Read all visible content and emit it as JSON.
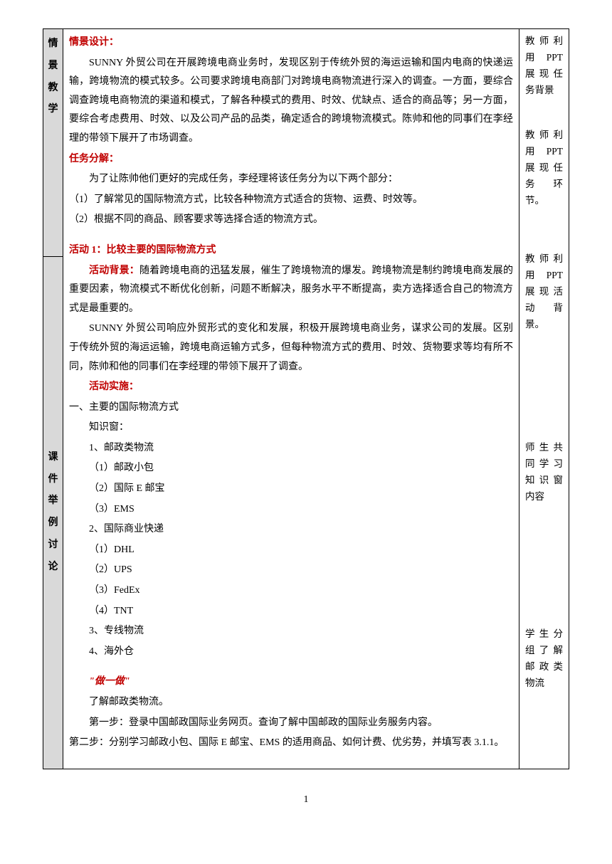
{
  "leftLabels": {
    "row1": "情景教学",
    "row2": "课件举例讨论"
  },
  "main": {
    "scenario": {
      "heading": "情景设计：",
      "p1": "SUNNY 外贸公司在开展跨境电商业务时，发现区别于传统外贸的海运运输和国内电商的快递运输，跨境物流的模式较多。公司要求跨境电商部门对跨境电商物流进行深入的调查。一方面，要综合调查跨境电商物流的渠道和模式，了解各种模式的费用、时效、优缺点、适合的商品等；另一方面，要综合考虑费用、时效、以及公司产品的品类，确定适合的跨境物流模式。陈帅和他的同事们在李经理的带领下展开了市场调查。"
    },
    "task": {
      "heading": "任务分解：",
      "intro": "为了让陈帅他们更好的完成任务，李经理将该任务分为以下两个部分：",
      "item1": "（1）了解常见的国际物流方式，比较各种物流方式适合的货物、运费、时效等。",
      "item2": "（2）根据不同的商品、顾客要求等选择合适的物流方式。"
    },
    "activity1": {
      "title": "活动 1：比较主要的国际物流方式",
      "bgLabel": "活动背景：",
      "bg1": "随着跨境电商的迅猛发展，催生了跨境物流的爆发。跨境物流是制约跨境电商发展的重要因素，物流模式不断优化创新，问题不断解决，服务水平不断提高，卖方选择适合自己的物流方式是最重要的。",
      "bg2": "SUNNY 外贸公司响应外贸形式的变化和发展，积极开展跨境电商业务，谋求公司的发展。区别于传统外贸的海运运输，跨境电商运输方式多，但每种物流方式的费用、时效、货物要求等均有所不同，陈帅和他的同事们在李经理的带领下展开了调查。",
      "implLabel": "活动实施：",
      "sec1": "一、主要的国际物流方式",
      "knowledge": "知识窗：",
      "k1": "1、邮政类物流",
      "k1a": "（1）邮政小包",
      "k1b": "（2）国际 E 邮宝",
      "k1c": "（3）EMS",
      "k2": "2、国际商业快递",
      "k2a": "（1）DHL",
      "k2b": "（2）UPS",
      "k2c": "（3）FedEx",
      "k2d": "（4）TNT",
      "k3": "3、专线物流",
      "k4": "4、海外仓"
    },
    "doit": {
      "title": "\"做一做\"",
      "intro": "了解邮政类物流。",
      "step1": "第一步：登录中国邮政国际业务网页。查询了解中国邮政的国际业务服务内容。",
      "step2": "第二步：分别学习邮政小包、国际 E 邮宝、EMS 的适用商品、如何计费、优劣势，并填写表 3.1.1。"
    }
  },
  "right": {
    "r1": "教师利用 PPT展现任务背景",
    "r2": "教师利用 PPT展现任务 环节。",
    "r3": "教师利用 PPT展现活动 背景。",
    "r4": "师生共同学习知识窗内容",
    "r5": "学生分组了解邮政类物流"
  },
  "pageNumber": "1"
}
